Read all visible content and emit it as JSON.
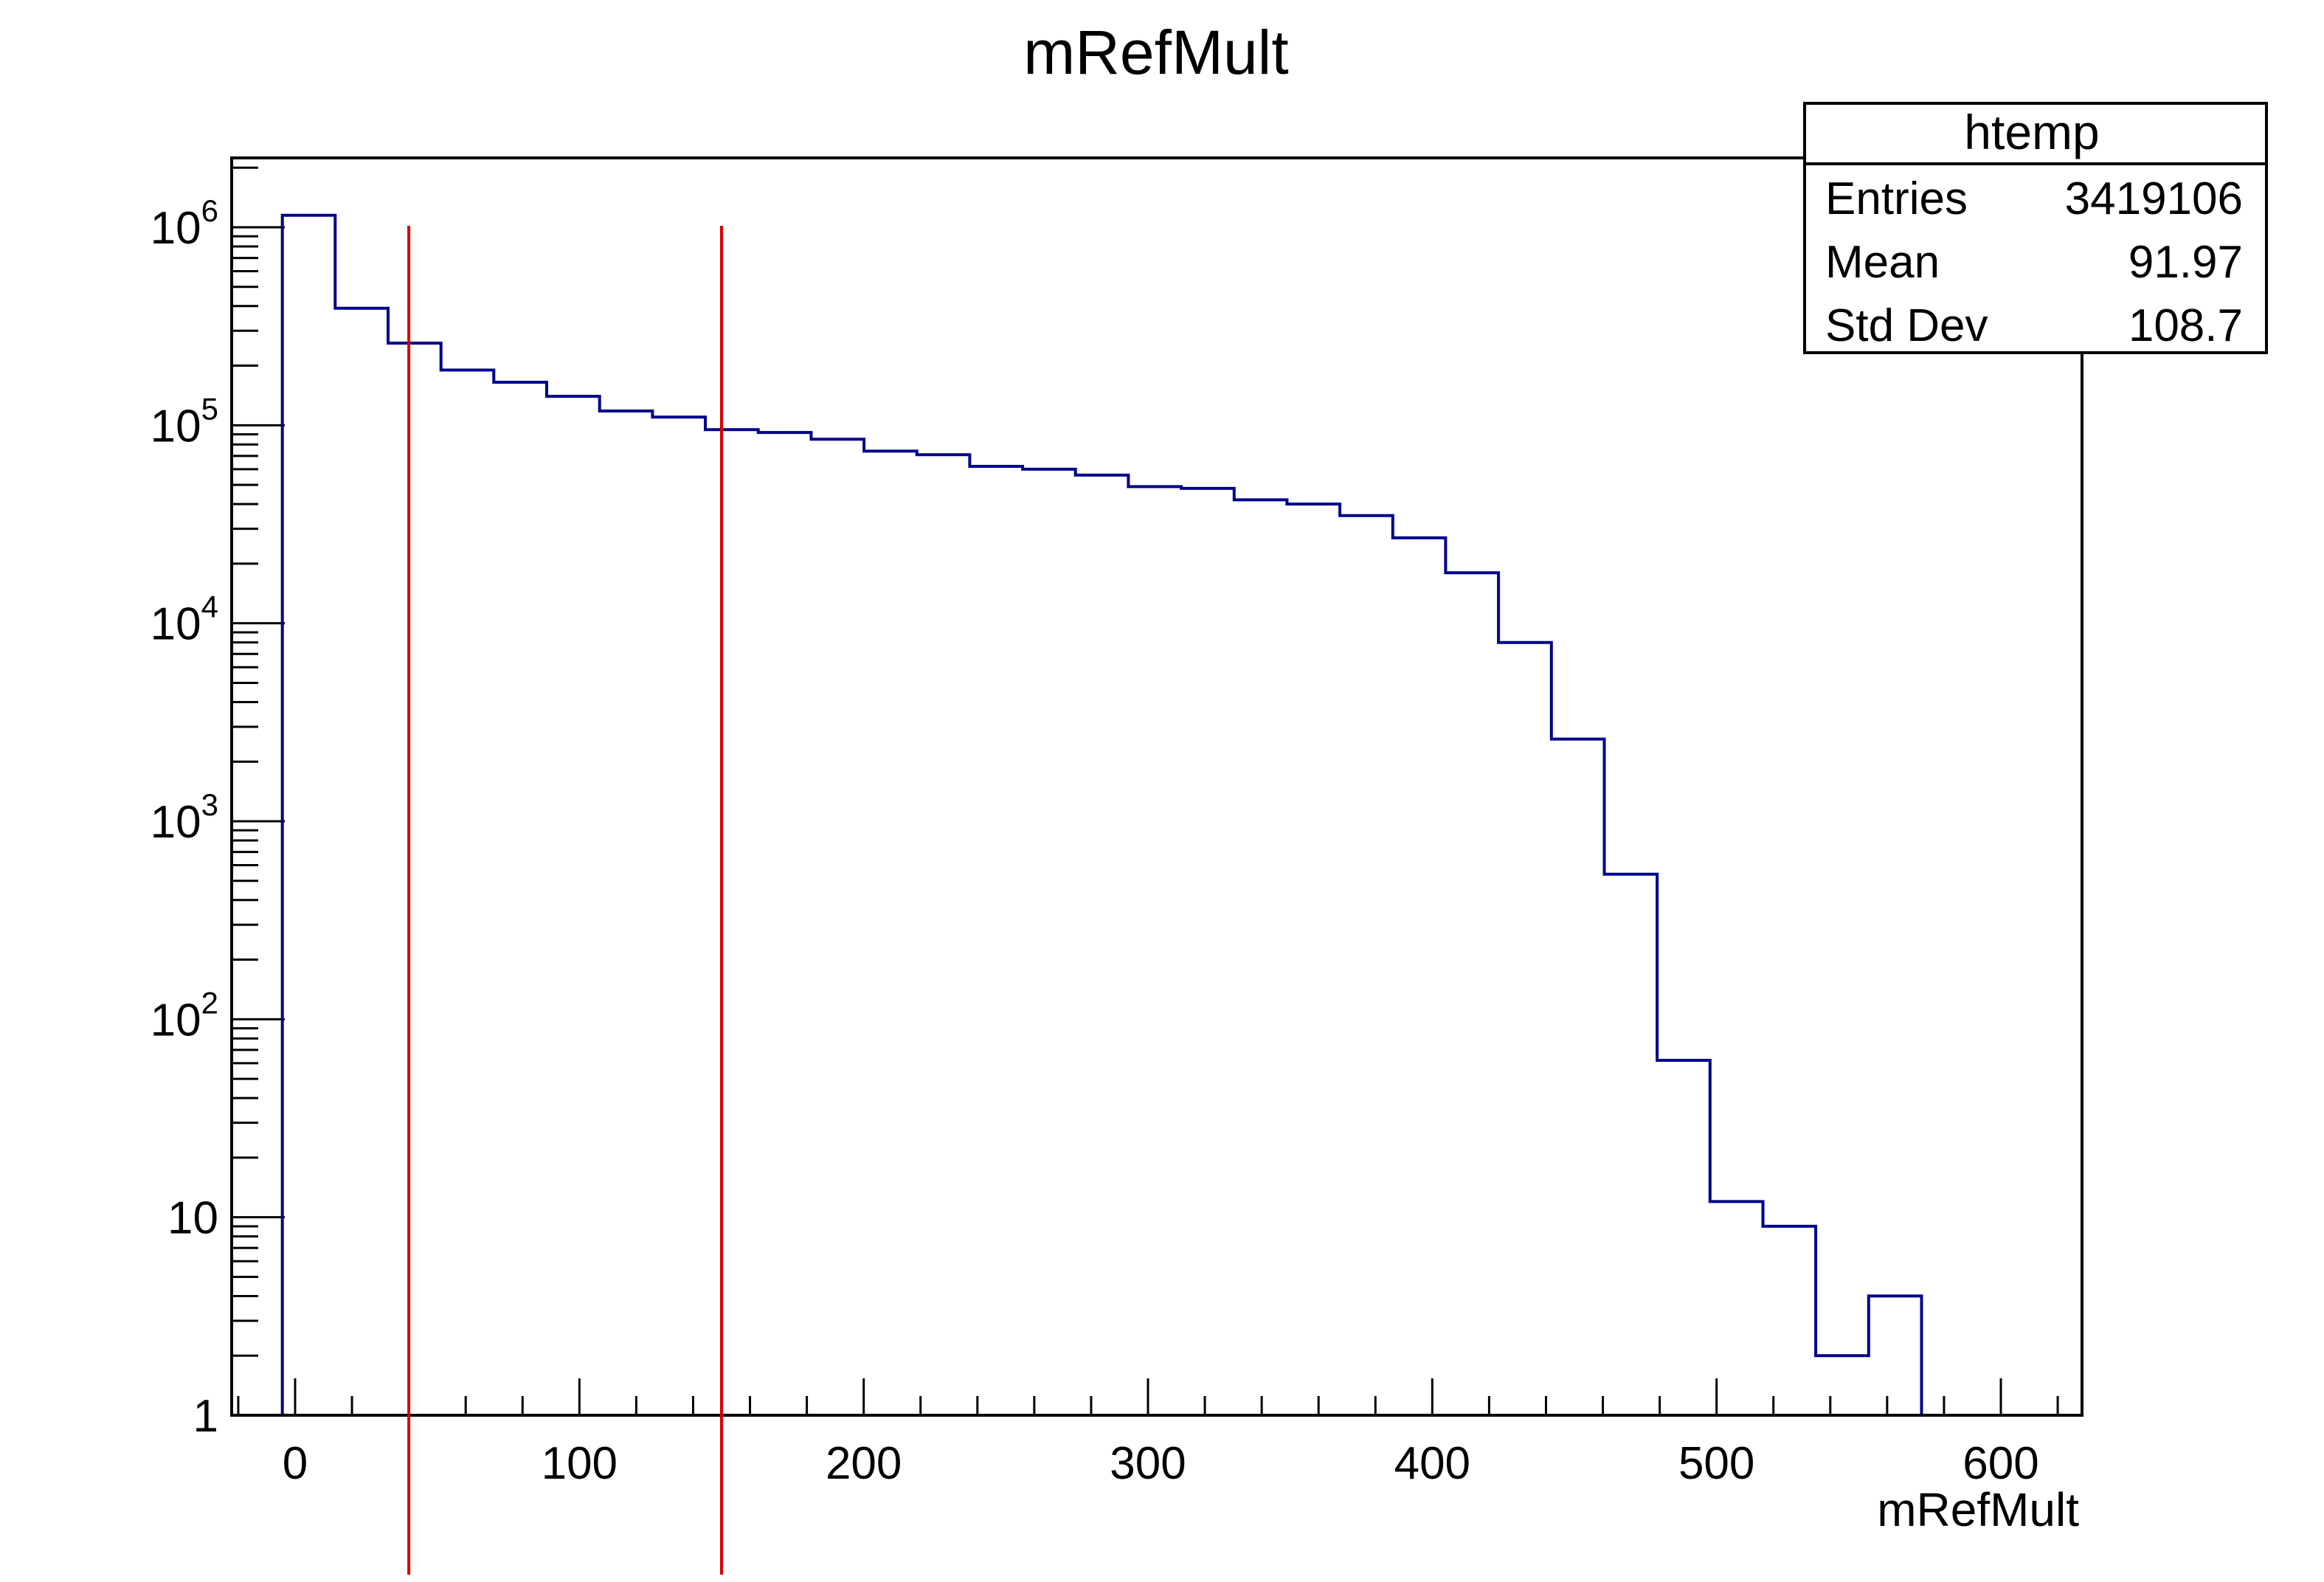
{
  "chart_data": {
    "type": "bar",
    "title": "mRefMult",
    "xlabel": "mRefMult",
    "ylabel": "",
    "xlim": [
      -22,
      627
    ],
    "ylim": [
      1,
      2000000
    ],
    "y_scale": "log",
    "grid": false,
    "x_ticks": [
      0,
      100,
      200,
      300,
      400,
      500,
      600
    ],
    "x_tick_labels": [
      "0",
      "100",
      "200",
      "300",
      "400",
      "500",
      "600"
    ],
    "y_ticks": [
      1,
      10,
      100,
      1000,
      10000,
      100000,
      1000000
    ],
    "y_tick_labels": [
      {
        "text": "1",
        "base": "",
        "exp": ""
      },
      {
        "text": "10",
        "base": "",
        "exp": ""
      },
      {
        "text": "",
        "base": "10",
        "exp": "2"
      },
      {
        "text": "",
        "base": "10",
        "exp": "3"
      },
      {
        "text": "",
        "base": "10",
        "exp": "4"
      },
      {
        "text": "",
        "base": "10",
        "exp": "5"
      },
      {
        "text": "",
        "base": "10",
        "exp": "6"
      }
    ],
    "bin_edges": [
      -4.5,
      14.1,
      32.7,
      51.3,
      69.9,
      88.5,
      107.1,
      125.7,
      144.3,
      162.9,
      181.5,
      200.1,
      218.7,
      237.3,
      255.9,
      274.5,
      293.1,
      311.7,
      330.3,
      348.9,
      367.5,
      386.1,
      404.7,
      423.3,
      441.9,
      460.5,
      479.1,
      497.7,
      516.3,
      534.9,
      553.5,
      572.1,
      590.7,
      609.3
    ],
    "bin_contents": [
      1150000,
      390000,
      260000,
      190000,
      165000,
      140000,
      118000,
      110000,
      95000,
      92000,
      85000,
      74000,
      71000,
      62000,
      60000,
      56000,
      49000,
      48000,
      42000,
      40000,
      35000,
      27000,
      18000,
      8000,
      2600,
      540,
      62,
      12,
      9,
      2,
      4,
      0,
      0
    ],
    "series": [
      {
        "color": "#00008b"
      }
    ],
    "cut_lines": {
      "x": [
        40,
        150
      ],
      "color": "#d40000"
    },
    "stats_box": {
      "title": "htemp",
      "rows": [
        {
          "label": "Entries",
          "value": "3419106"
        },
        {
          "label": "Mean",
          "value": "91.97"
        },
        {
          "label": "Std Dev",
          "value": "108.7"
        }
      ],
      "placement": "top-right"
    }
  }
}
